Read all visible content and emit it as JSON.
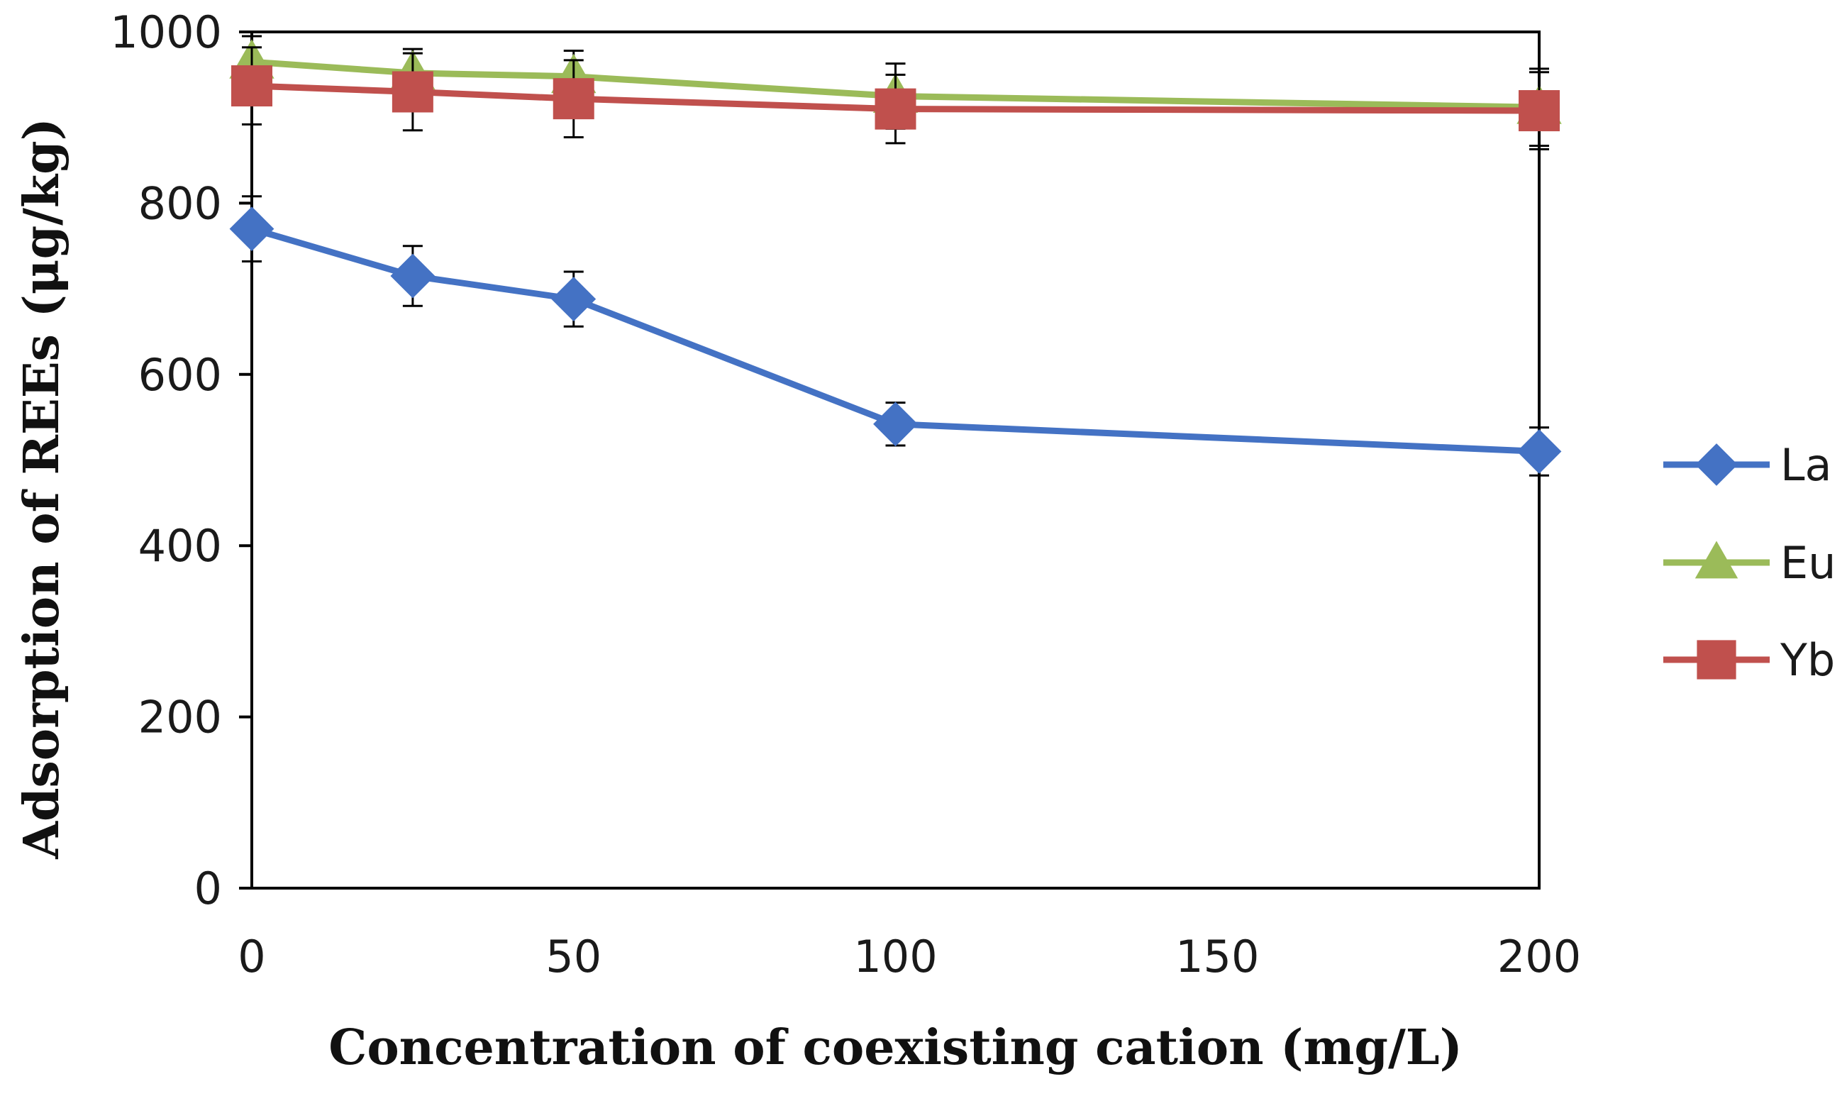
{
  "chart_data": {
    "type": "line",
    "title": "",
    "xlabel": "Concentration of coexisting cation (mg/L)",
    "ylabel": "Adsorption of REEs (μg/kg)",
    "xlim": [
      0,
      200
    ],
    "ylim": [
      0,
      1000
    ],
    "xticks": [
      0,
      50,
      100,
      150,
      200
    ],
    "yticks": [
      0,
      200,
      400,
      600,
      800,
      1000
    ],
    "grid": false,
    "legend_position": "right",
    "x": [
      0,
      25,
      50,
      100,
      200
    ],
    "series": [
      {
        "name": "La",
        "color": "#4472C4",
        "marker": "diamond",
        "values": [
          770,
          715,
          688,
          542,
          510
        ],
        "errors": [
          38,
          35,
          32,
          25,
          28
        ]
      },
      {
        "name": "Eu",
        "color": "#9BBB59",
        "marker": "triangle",
        "values": [
          965,
          952,
          948,
          925,
          912
        ],
        "errors": [
          30,
          28,
          30,
          38,
          45
        ]
      },
      {
        "name": "Yb",
        "color": "#C0504D",
        "marker": "square",
        "values": [
          937,
          930,
          922,
          910,
          908
        ],
        "errors": [
          45,
          45,
          45,
          40,
          45
        ]
      }
    ]
  }
}
